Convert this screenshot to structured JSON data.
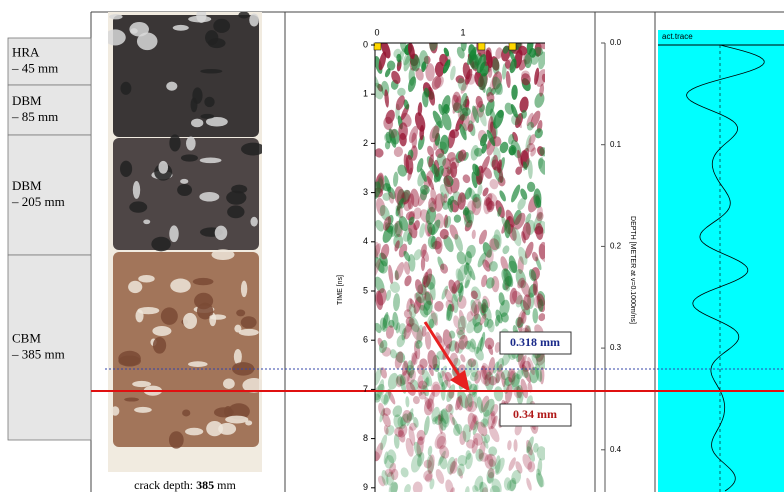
{
  "layers": [
    {
      "name": "HRA",
      "depth": "– 45 mm"
    },
    {
      "name": "DBM",
      "depth": "– 85 mm"
    },
    {
      "name": "DBM",
      "depth": "– 205 mm"
    },
    {
      "name": "CBM",
      "depth": "– 385 mm"
    }
  ],
  "caption": {
    "prefix": "crack depth:",
    "value": "385",
    "unit": "mm"
  },
  "radargram": {
    "distance_ticks": [
      "0",
      "1"
    ],
    "time_ticks": [
      "0",
      "1",
      "2",
      "3",
      "4",
      "5",
      "6",
      "7",
      "8",
      "9"
    ],
    "time_label": "TIME [ns]",
    "depth_ticks": [
      "0.0",
      "0.1",
      "0.2",
      "0.3",
      "0.4"
    ],
    "depth_label": "DEPTH [METER at v=0.1000m/ns]",
    "annotations": [
      "0.318 mm",
      "0.34 mm"
    ],
    "trace_label": "act.trace"
  }
}
